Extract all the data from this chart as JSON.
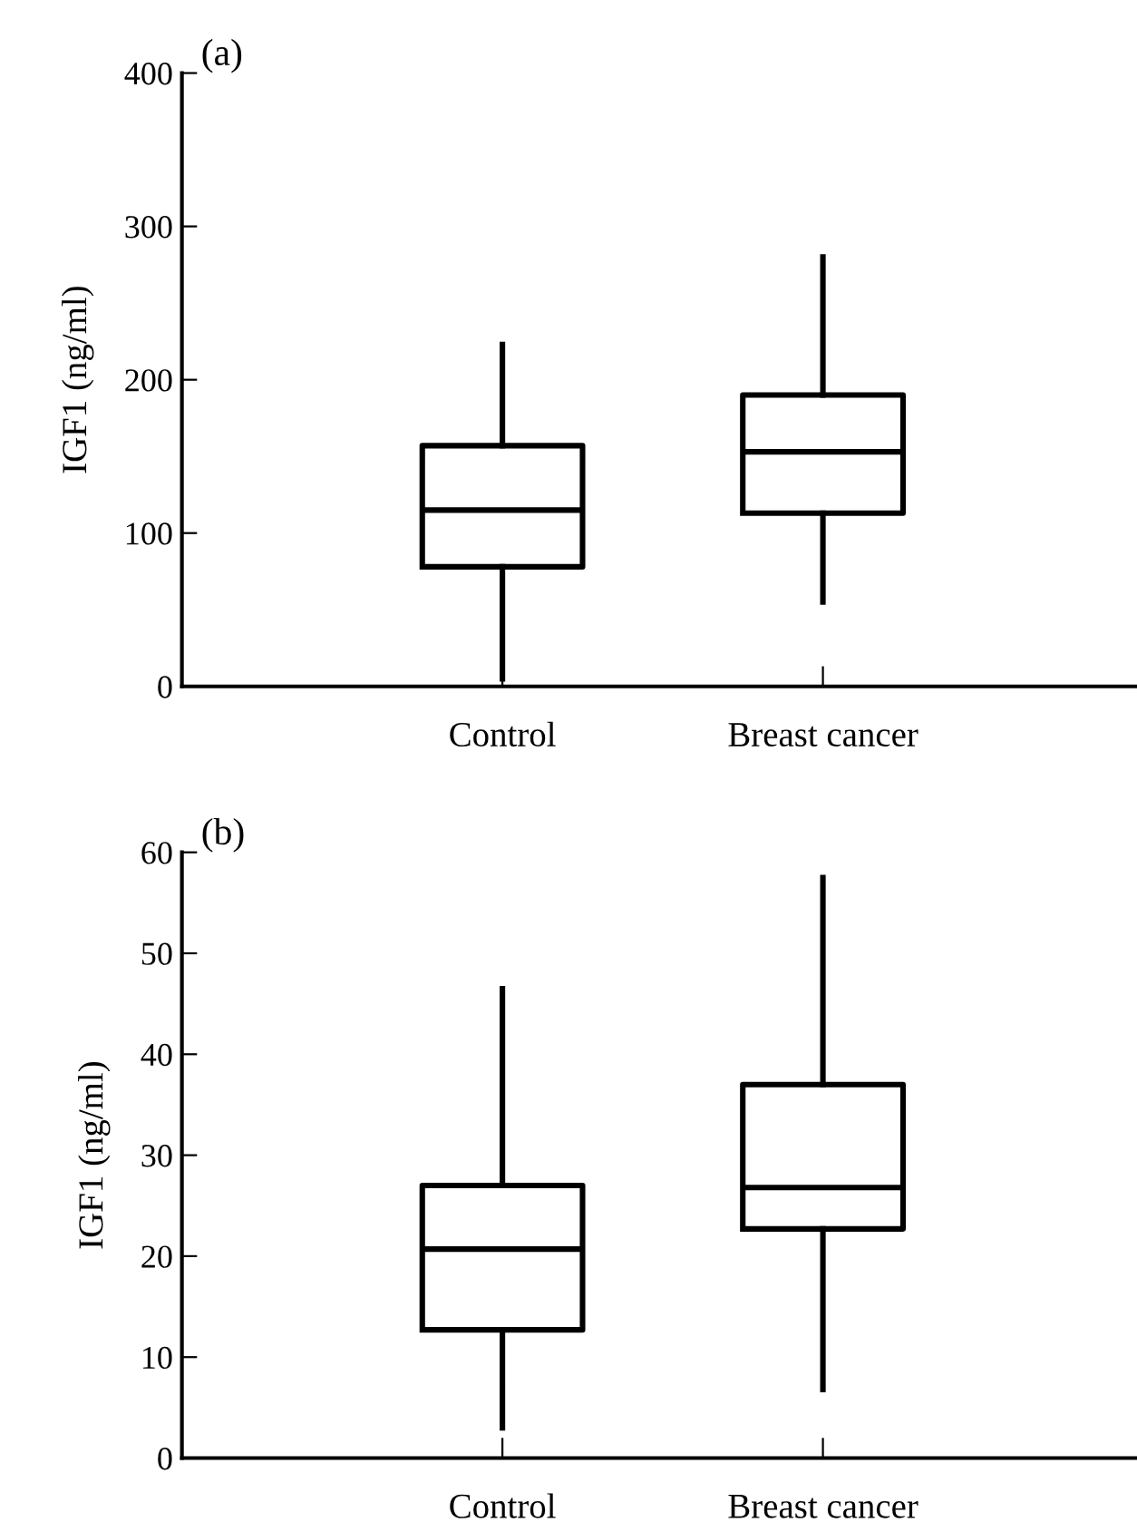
{
  "chart_data": [
    {
      "type": "box",
      "title": "(a)",
      "ylabel": "IGF1 (ng/ml)",
      "categories": [
        "Control",
        "Breast cancer"
      ],
      "ylim": [
        0,
        400
      ],
      "yticks": [
        0,
        100,
        200,
        300,
        400
      ],
      "grid": false,
      "legend": false,
      "boxes": [
        {
          "low": 5,
          "q1": 78,
          "median": 115,
          "q3": 157,
          "high": 223
        },
        {
          "low": 55,
          "q1": 113,
          "median": 153,
          "q3": 190,
          "high": 280
        }
      ]
    },
    {
      "type": "box",
      "title": "(b)",
      "ylabel": "IGF1 (ng/ml)",
      "categories": [
        "Control",
        "Breast cancer"
      ],
      "ylim": [
        0,
        60
      ],
      "yticks": [
        0,
        10,
        20,
        30,
        40,
        50,
        60
      ],
      "grid": false,
      "legend": false,
      "boxes": [
        {
          "low": 3,
          "q1": 12.7,
          "median": 20.7,
          "q3": 27,
          "high": 46.5
        },
        {
          "low": 6.8,
          "q1": 22.7,
          "median": 26.8,
          "q3": 37,
          "high": 57.5
        }
      ]
    }
  ]
}
